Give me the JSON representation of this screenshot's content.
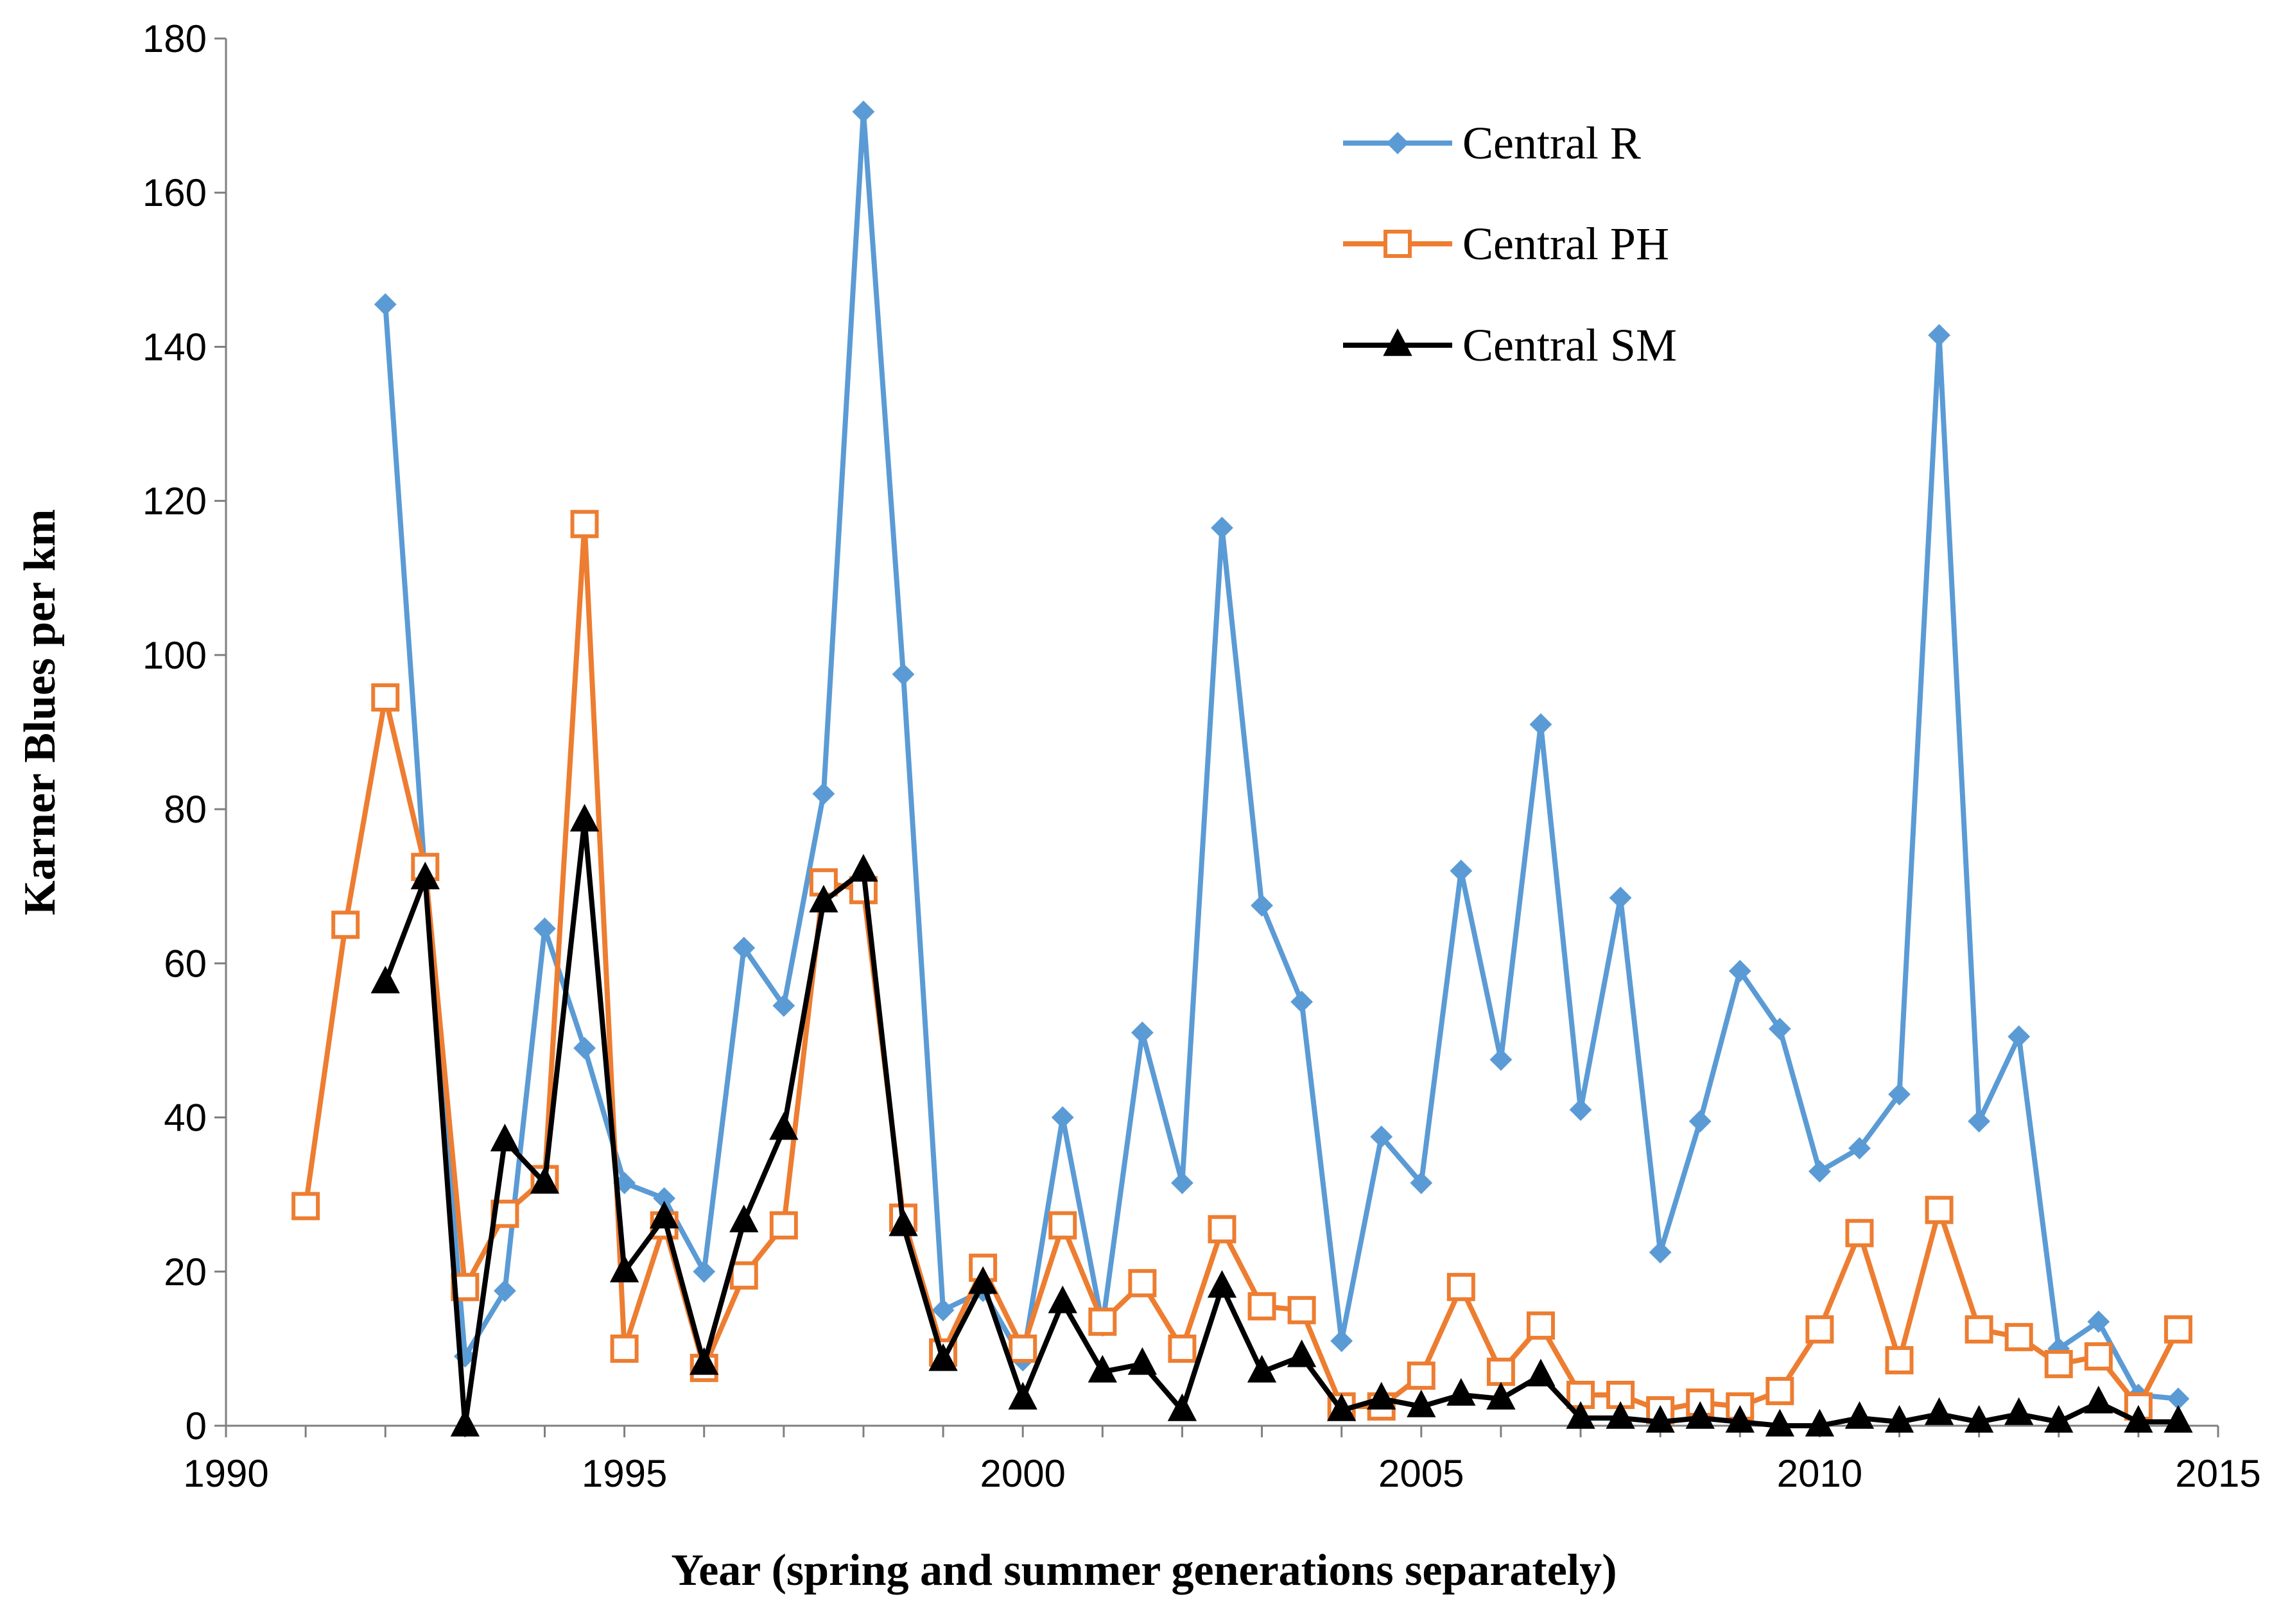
{
  "chart_data": {
    "type": "line",
    "title": "",
    "xlabel": "Year (spring and summer generations separately)",
    "ylabel": "Karner Blues per km",
    "xlim": [
      1990,
      2015
    ],
    "ylim": [
      0,
      180
    ],
    "xticks": [
      1990,
      1995,
      2000,
      2005,
      2010,
      2015
    ],
    "yticks": [
      0,
      20,
      40,
      60,
      80,
      100,
      120,
      140,
      160,
      180
    ],
    "legend_position": "top-right",
    "grid": false,
    "series": [
      {
        "name": "Central R",
        "color": "#5b9bd5",
        "marker": "diamond",
        "x": [
          1992,
          1992.5,
          1993,
          1993.5,
          1994,
          1994.5,
          1995,
          1995.5,
          1996,
          1996.5,
          1997,
          1997.5,
          1998,
          1998.5,
          1999,
          1999.5,
          2000,
          2000.5,
          2001,
          2001.5,
          2002,
          2002.5,
          2003,
          2003.5,
          2004,
          2004.5,
          2005,
          2005.5,
          2006,
          2006.5,
          2007,
          2007.5,
          2008,
          2008.5,
          2009,
          2009.5,
          2010,
          2010.5,
          2011,
          2011.5,
          2012,
          2012.5,
          2013,
          2013.5,
          2014,
          2014.5
        ],
        "y": [
          145.5,
          71,
          9,
          17.5,
          64.5,
          49,
          31.5,
          29.5,
          20,
          62,
          54.5,
          82,
          170.5,
          97.5,
          15,
          17.5,
          8.5,
          40,
          13,
          51,
          31.5,
          116.5,
          67.5,
          55,
          11,
          37.5,
          31.5,
          72,
          47.5,
          91,
          41,
          68.5,
          22.5,
          39.5,
          59,
          51.5,
          33,
          36,
          43,
          141.5,
          39.5,
          50.5,
          10,
          13.5,
          4,
          3.5
        ]
      },
      {
        "name": "Central PH",
        "color": "#ed7d31",
        "marker": "square-open",
        "x": [
          1991,
          1991.5,
          1992,
          1992.5,
          1993,
          1993.5,
          1994,
          1994.5,
          1995,
          1995.5,
          1996,
          1996.5,
          1997,
          1997.5,
          1998,
          1998.5,
          1999,
          1999.5,
          2000,
          2000.5,
          2001,
          2001.5,
          2002,
          2002.5,
          2003,
          2003.5,
          2004,
          2004.5,
          2005,
          2005.5,
          2006,
          2006.5,
          2007,
          2007.5,
          2008,
          2008.5,
          2009,
          2009.5,
          2010,
          2010.5,
          2011,
          2011.5,
          2012,
          2012.5,
          2013,
          2013.5,
          2014,
          2014.5
        ],
        "y": [
          28.5,
          65,
          94.5,
          72.5,
          18,
          27.5,
          32,
          117,
          10,
          26,
          7.5,
          19.5,
          26,
          70.5,
          69.5,
          27,
          9.5,
          20.5,
          10,
          26,
          13.5,
          18.5,
          10,
          25.5,
          15.5,
          15,
          2.5,
          2.5,
          6.5,
          18,
          7,
          13,
          4,
          4,
          2,
          3,
          2.5,
          4.5,
          12.5,
          25,
          8.5,
          28,
          12.5,
          11.5,
          8,
          9,
          2.5,
          12.5
        ]
      },
      {
        "name": "Central SM",
        "color": "#000000",
        "marker": "triangle",
        "x": [
          1992,
          1992.5,
          1993,
          1993.5,
          1994,
          1994.5,
          1995,
          1995.5,
          1996,
          1996.5,
          1997,
          1997.5,
          1998,
          1998.5,
          1999,
          1999.5,
          2000,
          2000.5,
          2001,
          2001.5,
          2002,
          2002.5,
          2003,
          2003.5,
          2004,
          2004.5,
          2005,
          2005.5,
          2006,
          2006.5,
          2007,
          2007.5,
          2008,
          2008.5,
          2009,
          2009.5,
          2010,
          2010.5,
          2011,
          2011.5,
          2012,
          2012.5,
          2013,
          2013.5,
          2014,
          2014.5
        ],
        "y": [
          57.5,
          71,
          0,
          37,
          31.5,
          78.5,
          20,
          27,
          8,
          26.5,
          38.5,
          68,
          72,
          26,
          8.5,
          18.5,
          3.5,
          16,
          7,
          8,
          2,
          18,
          7,
          9,
          2,
          3.5,
          2.5,
          4,
          3.5,
          6.5,
          1,
          1,
          0.5,
          1,
          0.5,
          0,
          0,
          1,
          0.5,
          1.5,
          0.5,
          1.5,
          0.5,
          3,
          0.5,
          0.5
        ]
      }
    ]
  }
}
